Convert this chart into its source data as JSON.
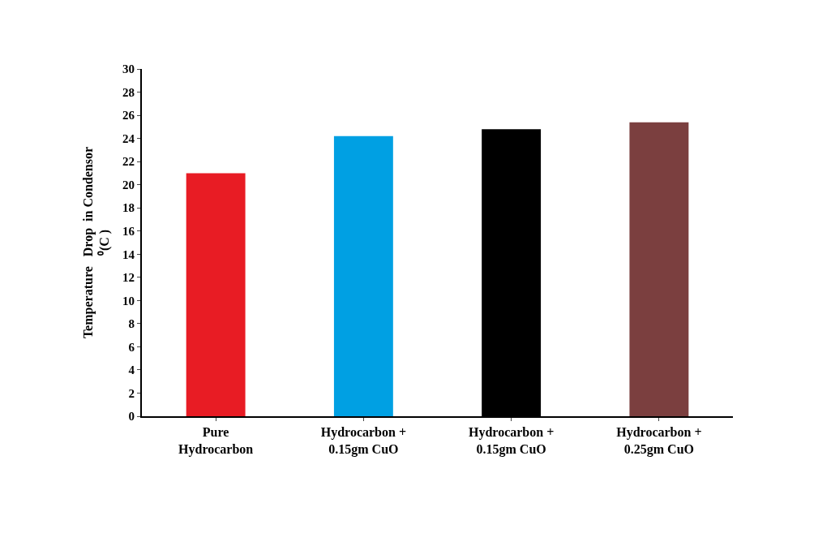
{
  "chart_data": {
    "type": "bar",
    "ylabel": "Temperature   Drop  in Condensor\n⁰(C )",
    "categories": [
      "Pure\nHydrocarbon",
      "Hydrocarbon +\n0.15gm CuO",
      "Hydrocarbon +\n0.15gm CuO",
      "Hydrocarbon +\n0.25gm CuO"
    ],
    "values": [
      21,
      24.2,
      24.8,
      25.4
    ],
    "colors": [
      "#e81c24",
      "#00a0e3",
      "#000000",
      "#7b3f3f"
    ],
    "ylim": [
      0,
      30
    ],
    "yticks": [
      0,
      2,
      4,
      6,
      8,
      10,
      12,
      14,
      16,
      18,
      20,
      22,
      24,
      26,
      28,
      30
    ]
  }
}
